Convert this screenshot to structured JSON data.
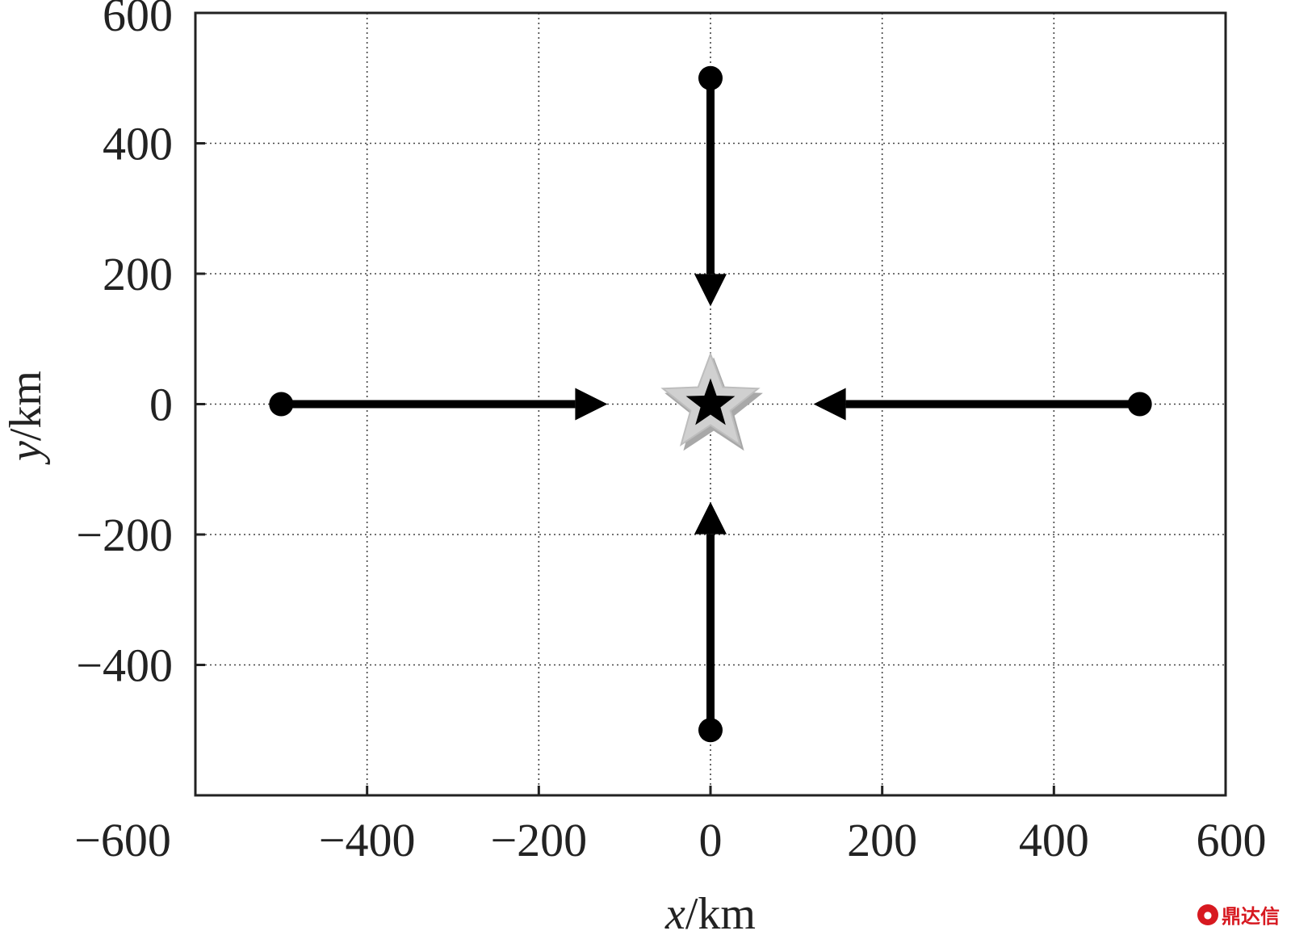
{
  "chart_data": {
    "type": "scatter",
    "title": "",
    "xlabel_var": "x",
    "xlabel_unit": "/km",
    "ylabel_var": "y",
    "ylabel_unit": "/km",
    "xlim": [
      -600,
      600
    ],
    "ylim": [
      -600,
      600
    ],
    "xticks": [
      -600,
      -400,
      -200,
      0,
      200,
      400,
      600
    ],
    "yticks": [
      -400,
      -200,
      0,
      200,
      400,
      600
    ],
    "xtick_labels": [
      "−600",
      "−400",
      "−200",
      "0",
      "200",
      "400",
      "600"
    ],
    "ytick_labels": [
      "−400",
      "−200",
      "0",
      "200",
      "400",
      "600"
    ],
    "grid": true,
    "target": {
      "x": 0,
      "y": 0,
      "marker": "star"
    },
    "trajectories": [
      {
        "start": [
          0,
          500
        ],
        "end": [
          0,
          150
        ],
        "direction": "down"
      },
      {
        "start": [
          -500,
          0
        ],
        "end": [
          -120,
          0
        ],
        "direction": "right"
      },
      {
        "start": [
          500,
          0
        ],
        "end": [
          120,
          0
        ],
        "direction": "left"
      },
      {
        "start": [
          0,
          -500
        ],
        "end": [
          0,
          -150
        ],
        "direction": "up"
      }
    ],
    "colors": {
      "line": "#000000",
      "star_outer": "#d0d0d0",
      "star_inner": "#000000"
    }
  },
  "watermark": {
    "text": "鼎达信"
  }
}
